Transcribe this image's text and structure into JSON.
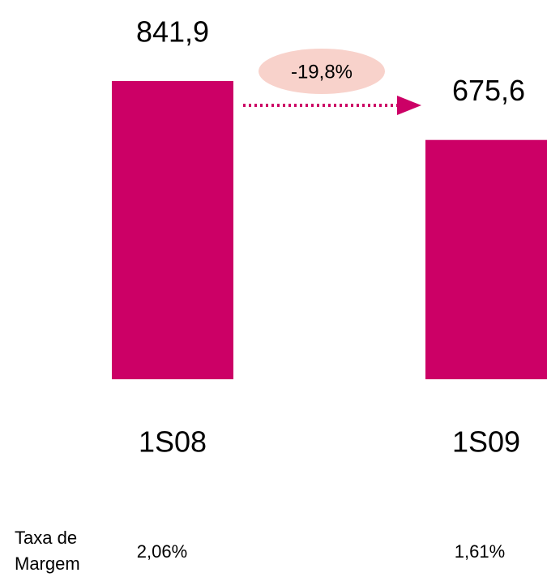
{
  "chart_data": {
    "type": "bar",
    "categories": [
      "1S08",
      "1S09"
    ],
    "values": [
      841.9,
      675.6
    ],
    "value_labels": [
      "841,9",
      "675,6"
    ],
    "color": "#cc0066",
    "annotation": "-19,8%",
    "row_label": [
      "Taxa de",
      "Margem"
    ],
    "row_values": [
      "2,06%",
      "1,61%"
    ]
  }
}
